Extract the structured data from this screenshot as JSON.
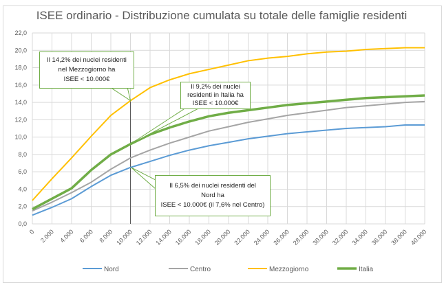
{
  "chart_data": {
    "type": "line",
    "title": "ISEE ordinario - Distribuzione  cumulata su totale delle famiglie residenti",
    "xlabel": "",
    "ylabel": "",
    "x": [
      0,
      2000,
      4000,
      6000,
      8000,
      10000,
      12000,
      14000,
      16000,
      18000,
      20000,
      22000,
      24000,
      26000,
      28000,
      30000,
      32000,
      34000,
      36000,
      38000,
      40000
    ],
    "x_tick_labels": [
      "0",
      "2.000",
      "4.000",
      "6.000",
      "8.000",
      "10.000",
      "12.000",
      "14.000",
      "16.000",
      "18.000",
      "20.000",
      "22.000",
      "24.000",
      "26.000",
      "28.000",
      "30.000",
      "32.000",
      "34.000",
      "36.000",
      "38.000",
      "40.000"
    ],
    "y_tick_labels": [
      "0,0",
      "2,0",
      "4,0",
      "6,0",
      "8,0",
      "10,0",
      "12,0",
      "14,0",
      "16,0",
      "18,0",
      "20,0",
      "22,0"
    ],
    "ylim": [
      0,
      22
    ],
    "xlim": [
      0,
      40000
    ],
    "grid": true,
    "legend_position": "bottom",
    "series": [
      {
        "name": "Nord",
        "color": "#5b9bd5",
        "values": [
          1.0,
          1.9,
          2.9,
          4.3,
          5.6,
          6.5,
          7.2,
          7.9,
          8.5,
          9.0,
          9.4,
          9.8,
          10.1,
          10.4,
          10.6,
          10.8,
          11.0,
          11.1,
          11.2,
          11.4,
          11.4
        ]
      },
      {
        "name": "Centro",
        "color": "#a5a5a5",
        "values": [
          1.5,
          2.5,
          3.6,
          4.8,
          6.3,
          7.6,
          8.5,
          9.3,
          10.0,
          10.7,
          11.2,
          11.7,
          12.1,
          12.5,
          12.8,
          13.1,
          13.4,
          13.6,
          13.8,
          14.0,
          14.1
        ]
      },
      {
        "name": "Mezzogiorno",
        "color": "#ffc000",
        "values": [
          2.7,
          5.2,
          7.6,
          10.1,
          12.5,
          14.2,
          15.7,
          16.6,
          17.3,
          17.8,
          18.3,
          18.8,
          19.1,
          19.3,
          19.6,
          19.8,
          19.9,
          20.1,
          20.2,
          20.3,
          20.3
        ]
      },
      {
        "name": "Italia",
        "color": "#70ad47",
        "values": [
          1.7,
          2.9,
          4.1,
          6.2,
          8.0,
          9.2,
          10.3,
          11.1,
          11.8,
          12.4,
          12.8,
          13.1,
          13.4,
          13.7,
          13.9,
          14.1,
          14.3,
          14.5,
          14.6,
          14.7,
          14.8
        ]
      }
    ],
    "reference_line_x": 10000,
    "annotations": [
      {
        "lines": [
          "Il 14,2% dei nuclei residenti",
          "nel Mezzogiorno ha",
          "ISEE < 10.000€"
        ],
        "x": 10000,
        "y": 14.2
      },
      {
        "lines": [
          "Il 9,2% dei nuclei",
          "residenti in Italia ha",
          "ISEE < 10.000€"
        ],
        "x": 10000,
        "y": 9.2
      },
      {
        "lines": [
          "Il 6,5% dei nuclei residenti del",
          "Nord ha",
          "ISEE < 10.000€ (il 7,6% nel Centro)"
        ],
        "x": 10000,
        "y": 6.5
      }
    ]
  }
}
